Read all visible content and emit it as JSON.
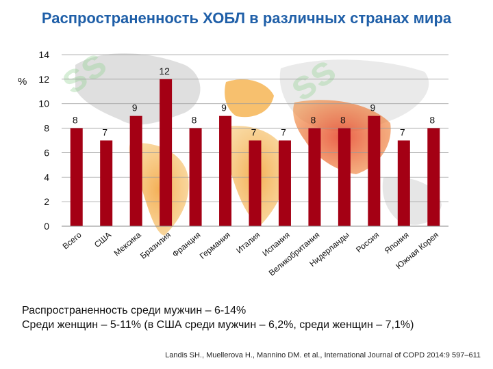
{
  "slide": {
    "title": "Распространенность ХОБЛ в различных странах мира",
    "summary_line1": "Распространенность среди мужчин – 6-14%",
    "summary_line2": "Среди женщин – 5-11% (в США среди мужчин – 6,2%, среди женщин – 7,1%)",
    "citation": "Landis SH., Muellerova H., Mannino DM. et al., International Journal of COPD 2014:9 597–611"
  },
  "chart_data": {
    "type": "bar",
    "title": "",
    "xlabel": "",
    "ylabel": "%",
    "ylim": [
      0,
      14
    ],
    "yticks": [
      0,
      2,
      4,
      6,
      8,
      10,
      12,
      14
    ],
    "grid": true,
    "categories": [
      "Всего",
      "США",
      "Мексика",
      "Бразилия",
      "Франция",
      "Германия",
      "Италия",
      "Испания",
      "Великобритания",
      "Нидерланды",
      "Россия",
      "Япония",
      "Южная Корея"
    ],
    "values": [
      8,
      7,
      9,
      12,
      8,
      9,
      7,
      7,
      8,
      8,
      9,
      7,
      8
    ],
    "bar_color": "#a40014"
  }
}
